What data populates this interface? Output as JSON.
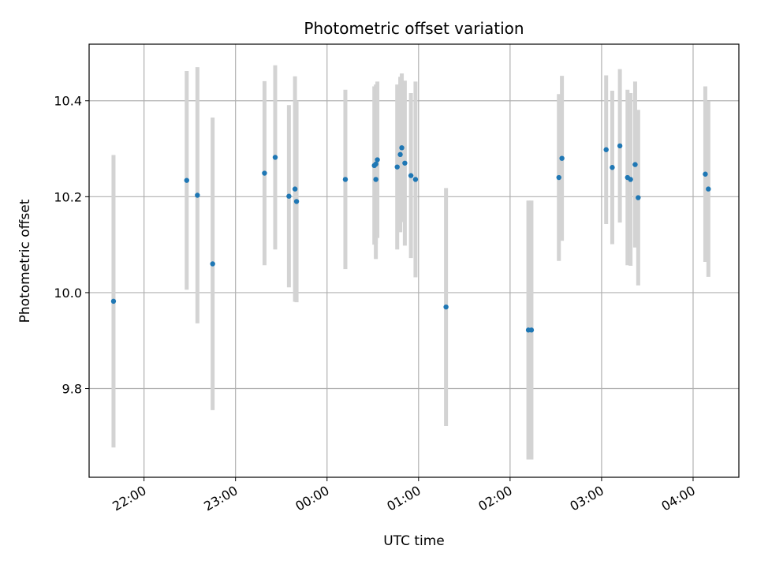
{
  "chart_data": {
    "type": "scatter",
    "title": "Photometric offset variation",
    "xlabel": "UTC time",
    "ylabel": "Photometric offset",
    "x_tick_labels": [
      "22:00",
      "23:00",
      "00:00",
      "01:00",
      "02:00",
      "03:00",
      "04:00"
    ],
    "y_tick_labels": [
      "9.8",
      "10.0",
      "10.2",
      "10.4"
    ],
    "y_ticks": [
      9.8,
      10.0,
      10.2,
      10.4
    ],
    "xlim": [
      "21:24",
      "04:30"
    ],
    "ylim": [
      9.615,
      10.518
    ],
    "grid": true,
    "colors": {
      "point": "#1f77b4",
      "errorbar": "#d3d3d3",
      "grid": "#b0b0b0"
    },
    "series": [
      {
        "points": [
          {
            "x": "21:40",
            "y": 9.982,
            "err": 0.305
          },
          {
            "x": "22:28",
            "y": 10.234,
            "err": 0.228
          },
          {
            "x": "22:35",
            "y": 10.203,
            "err": 0.267
          },
          {
            "x": "22:45",
            "y": 10.06,
            "err": 0.305
          },
          {
            "x": "23:19",
            "y": 10.249,
            "err": 0.192
          },
          {
            "x": "23:26",
            "y": 10.282,
            "err": 0.192
          },
          {
            "x": "23:35",
            "y": 10.201,
            "err": 0.19
          },
          {
            "x": "23:39",
            "y": 10.216,
            "err": 0.235
          },
          {
            "x": "23:40",
            "y": 10.19,
            "err": 0.21
          },
          {
            "x": "00:12",
            "y": 10.236,
            "err": 0.187
          },
          {
            "x": "00:31",
            "y": 10.265,
            "err": 0.165
          },
          {
            "x": "00:32",
            "y": 10.236,
            "err": 0.166
          },
          {
            "x": "00:32",
            "y": 10.268,
            "err": 0.166
          },
          {
            "x": "00:33",
            "y": 10.277,
            "err": 0.163
          },
          {
            "x": "00:46",
            "y": 10.262,
            "err": 0.172
          },
          {
            "x": "00:48",
            "y": 10.288,
            "err": 0.162
          },
          {
            "x": "00:49",
            "y": 10.302,
            "err": 0.155
          },
          {
            "x": "00:51",
            "y": 10.27,
            "err": 0.172
          },
          {
            "x": "00:55",
            "y": 10.244,
            "err": 0.172
          },
          {
            "x": "00:58",
            "y": 10.236,
            "err": 0.204
          },
          {
            "x": "01:18",
            "y": 9.97,
            "err": 0.248
          },
          {
            "x": "02:12",
            "y": 9.922,
            "err": 0.27
          },
          {
            "x": "02:14",
            "y": 9.922,
            "err": 0.27
          },
          {
            "x": "02:32",
            "y": 10.24,
            "err": 0.174
          },
          {
            "x": "02:34",
            "y": 10.28,
            "err": 0.172
          },
          {
            "x": "03:03",
            "y": 10.298,
            "err": 0.155
          },
          {
            "x": "03:07",
            "y": 10.261,
            "err": 0.16
          },
          {
            "x": "03:12",
            "y": 10.306,
            "err": 0.16
          },
          {
            "x": "03:17",
            "y": 10.24,
            "err": 0.183
          },
          {
            "x": "03:19",
            "y": 10.236,
            "err": 0.18
          },
          {
            "x": "03:22",
            "y": 10.267,
            "err": 0.173
          },
          {
            "x": "03:24",
            "y": 10.198,
            "err": 0.183
          },
          {
            "x": "04:08",
            "y": 10.247,
            "err": 0.183
          },
          {
            "x": "04:10",
            "y": 10.216,
            "err": 0.183
          }
        ]
      }
    ]
  }
}
